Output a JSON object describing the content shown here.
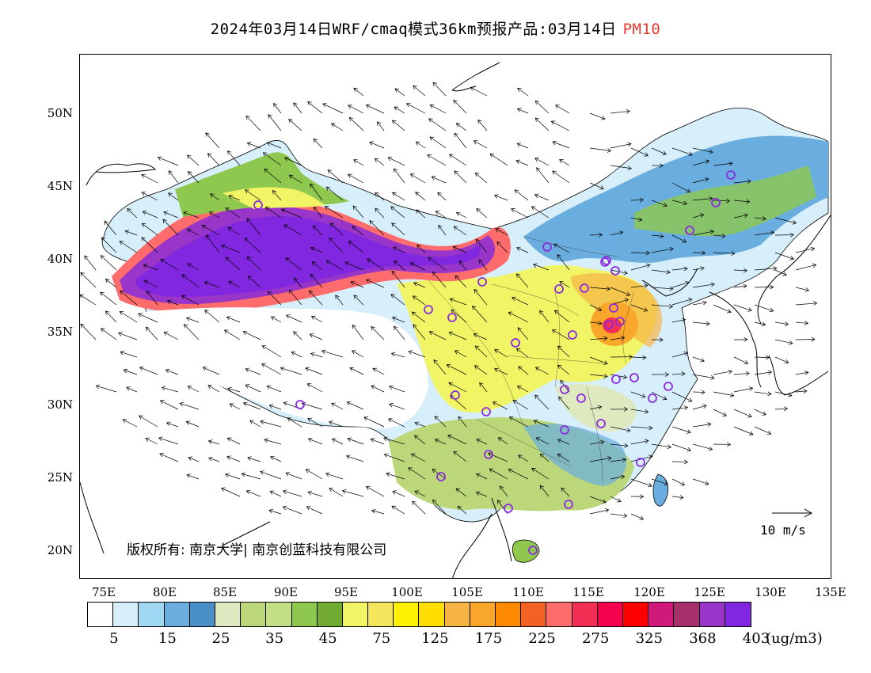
{
  "title": {
    "main": "2024年03月14日WRF/cmaq模式36km预报产品:03月14日",
    "pollutant": "PM10",
    "pollutant_color": "#e8382f"
  },
  "map": {
    "lat_labels": [
      "50N",
      "45N",
      "40N",
      "35N",
      "30N",
      "25N",
      "20N"
    ],
    "lon_labels": [
      "75E",
      "80E",
      "85E",
      "90E",
      "95E",
      "100E",
      "105E",
      "110E",
      "115E",
      "120E",
      "125E",
      "130E",
      "135E"
    ],
    "copyright": "版权所有: 南京大学| 南京创蓝科技有限公司",
    "wind_reference": "10 m/s",
    "station_marker_color": "#8a2be2"
  },
  "colorbar": {
    "colors": [
      "#ffffff",
      "#d6effa",
      "#9fd8f2",
      "#6aaedf",
      "#4a8fc8",
      "#dfe9bf",
      "#bcd77a",
      "#c3df88",
      "#8fc84e",
      "#72ab34",
      "#f1f565",
      "#f4e65c",
      "#fff200",
      "#ffde00",
      "#f6b444",
      "#f8a72a",
      "#ff8a00",
      "#f36224",
      "#ff6c6c",
      "#f42f55",
      "#f4004c",
      "#ff0000",
      "#cf1a7c",
      "#a8306a",
      "#9a35c9",
      "#8227e0"
    ],
    "labels": [
      "5",
      "15",
      "25",
      "35",
      "45",
      "75",
      "125",
      "175",
      "225",
      "275",
      "325",
      "368",
      "403"
    ],
    "unit": "(ug/m3)"
  }
}
